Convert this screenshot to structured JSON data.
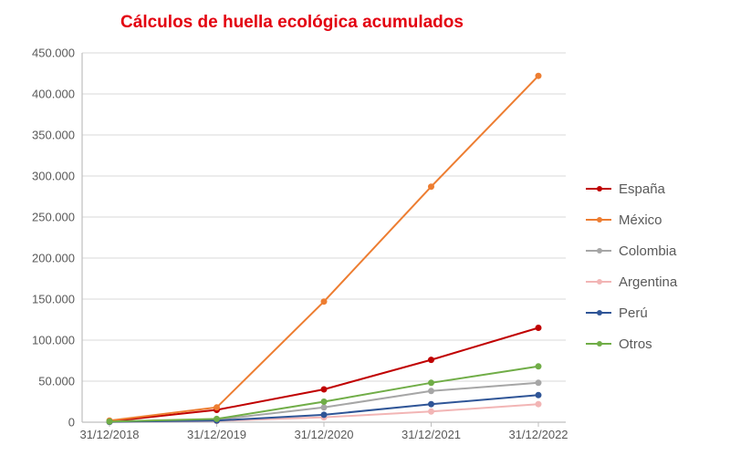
{
  "chart": {
    "type": "line",
    "title": "Cálculos de huella ecológica acumulados",
    "title_color": "#e3000f",
    "title_fontsize": 19,
    "title_fontweight": 700,
    "background_color": "#ffffff",
    "axis_color": "#bfbfbf",
    "gridline_color": "#d9d9d9",
    "tick_label_color": "#595959",
    "tick_label_fontsize": 13,
    "line_width": 2,
    "marker_radius": 3.5,
    "marker_style": "circle",
    "y": {
      "min": 0,
      "max": 450000,
      "tick_step": 50000,
      "tick_labels": [
        "0",
        "50.000",
        "100.000",
        "150.000",
        "200.000",
        "250.000",
        "300.000",
        "350.000",
        "400.000",
        "450.000"
      ]
    },
    "x": {
      "categories": [
        "31/12/2018",
        "31/12/2019",
        "31/12/2020",
        "31/12/2021",
        "31/12/2022"
      ]
    },
    "series": [
      {
        "name": "España",
        "color": "#c00000",
        "values": [
          1000,
          15000,
          40000,
          76000,
          115000
        ]
      },
      {
        "name": "México",
        "color": "#ed7d31",
        "values": [
          2000,
          18000,
          147000,
          287000,
          422000
        ]
      },
      {
        "name": "Colombia",
        "color": "#a6a6a6",
        "values": [
          500,
          3000,
          18000,
          38000,
          48000
        ]
      },
      {
        "name": "Argentina",
        "color": "#f2b5b5",
        "values": [
          300,
          1500,
          6000,
          13000,
          22000
        ]
      },
      {
        "name": "Perú",
        "color": "#2f5597",
        "values": [
          400,
          2000,
          9000,
          22000,
          33000
        ]
      },
      {
        "name": "Otros",
        "color": "#70ad47",
        "values": [
          800,
          4000,
          25000,
          48000,
          68000
        ]
      }
    ],
    "legend": {
      "position": "right",
      "label_fontsize": 15,
      "label_color": "#595959"
    }
  }
}
